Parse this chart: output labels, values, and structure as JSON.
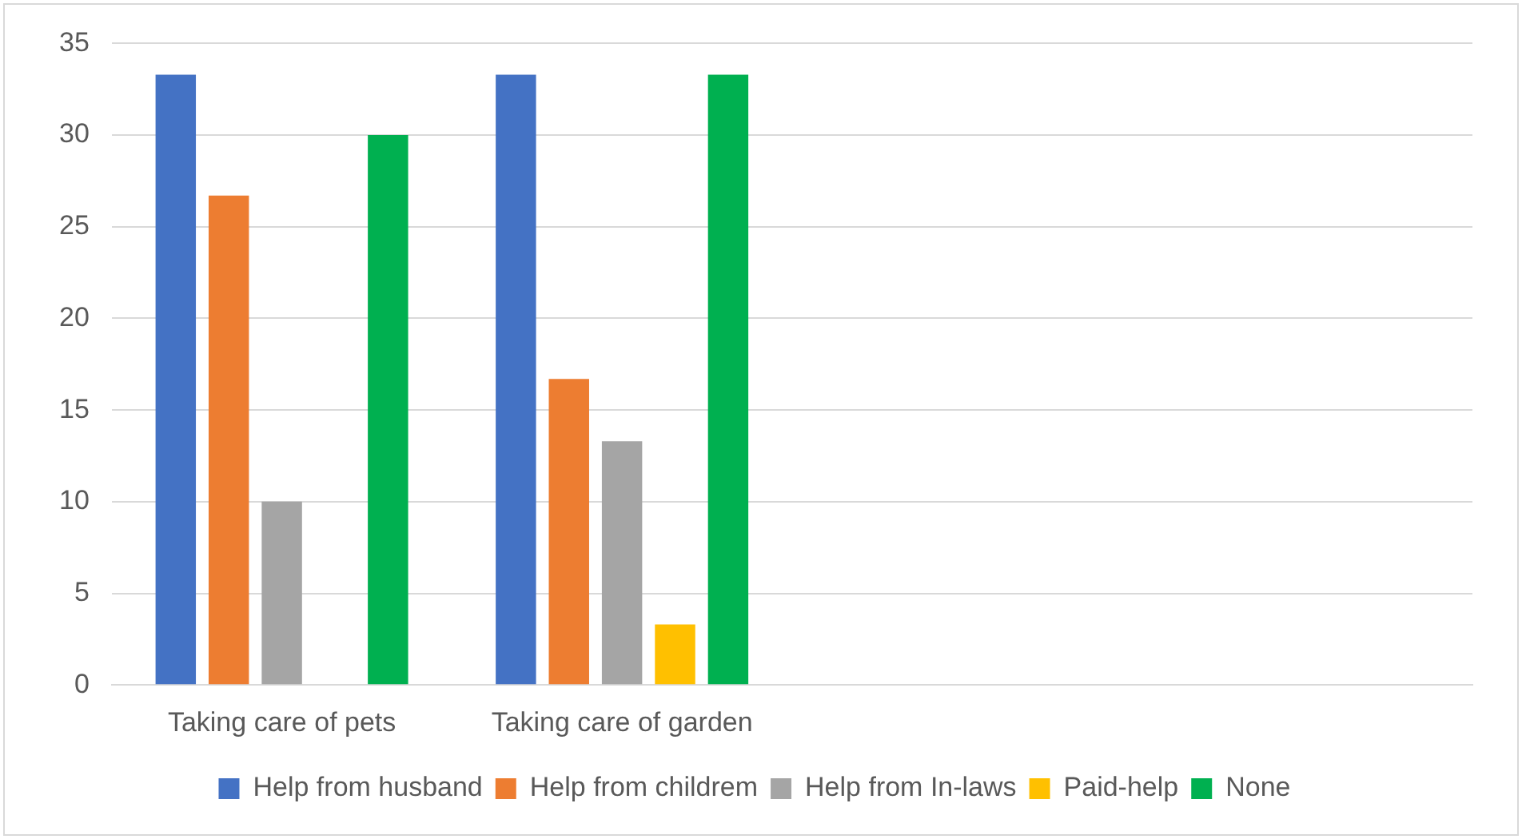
{
  "chart_data": {
    "type": "bar",
    "categories": [
      "Taking care of pets",
      "Taking care of garden",
      null,
      null
    ],
    "series": [
      {
        "name": "Help from husband",
        "color": "#4472c4",
        "values": [
          33.3,
          33.3,
          null,
          null
        ]
      },
      {
        "name": "Help from childrem",
        "color": "#ed7d31",
        "values": [
          26.7,
          16.7,
          null,
          null
        ]
      },
      {
        "name": "Help from In-laws",
        "color": "#a5a5a5",
        "values": [
          10,
          13.3,
          null,
          null
        ]
      },
      {
        "name": "Paid-help",
        "color": "#ffc000",
        "values": [
          0,
          3.3,
          null,
          null
        ]
      },
      {
        "name": "None",
        "color": "#00b050",
        "values": [
          30,
          33.3,
          null,
          null
        ]
      }
    ],
    "ylim": [
      0,
      35
    ],
    "yticks": [
      0,
      5,
      10,
      15,
      20,
      25,
      30,
      35
    ],
    "grid": "y",
    "legend": "bottom"
  }
}
